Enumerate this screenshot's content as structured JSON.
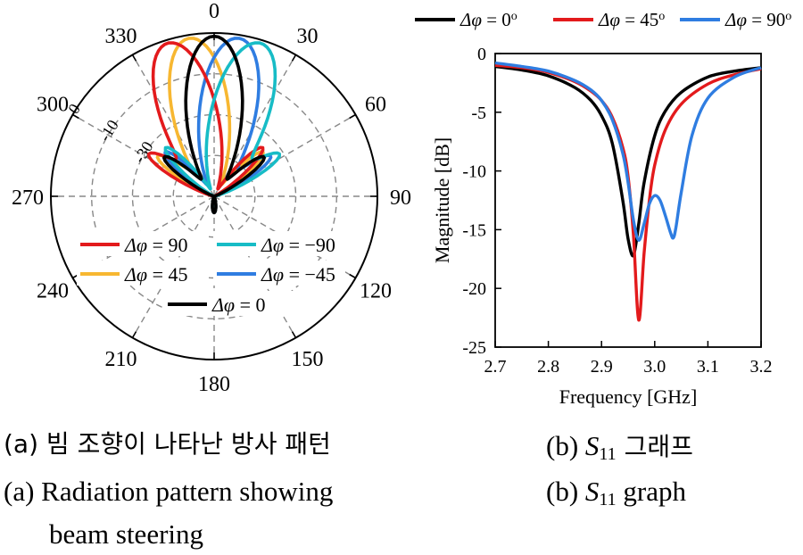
{
  "chart_data": [
    {
      "type": "polar-line",
      "title": "Radiation pattern showing beam steering",
      "angle_ticks": [
        "0",
        "30",
        "60",
        "90",
        "120",
        "150",
        "180",
        "210",
        "240",
        "270",
        "300",
        "330"
      ],
      "radial_labels": [
        "0",
        "-10",
        "-30"
      ],
      "rlim_db": [
        -40,
        0
      ],
      "legend": [
        {
          "symbol": "Δφ",
          "value": "90",
          "color": "#e31a1c"
        },
        {
          "symbol": "Δφ",
          "value": "−90",
          "color": "#17bcc6"
        },
        {
          "symbol": "Δφ",
          "value": "45",
          "color": "#f7b731"
        },
        {
          "symbol": "Δφ",
          "value": "−45",
          "color": "#2f7de1"
        },
        {
          "symbol": "Δφ",
          "value": "0",
          "color": "#000000"
        }
      ],
      "series": [
        {
          "name": "Δφ = 0",
          "color": "#000000",
          "main_beam_deg": 0,
          "main_width_deg": 24,
          "side_lobes_deg": [
            -52,
            52
          ],
          "side_level": 0.38
        },
        {
          "name": "Δφ = 90",
          "color": "#e31a1c",
          "main_beam_deg": -17,
          "main_width_deg": 24,
          "side_lobes_deg": [
            -58,
            45
          ],
          "side_level": 0.42
        },
        {
          "name": "Δφ = −90",
          "color": "#17bcc6",
          "main_beam_deg": 17,
          "main_width_deg": 24,
          "side_lobes_deg": [
            -45,
            58
          ],
          "side_level": 0.42
        },
        {
          "name": "Δφ = 45",
          "color": "#f7b731",
          "main_beam_deg": -9,
          "main_width_deg": 24,
          "side_lobes_deg": [
            -55,
            48
          ],
          "side_level": 0.4
        },
        {
          "name": "Δφ = −45",
          "color": "#2f7de1",
          "main_beam_deg": 9,
          "main_width_deg": 24,
          "side_lobes_deg": [
            -48,
            55
          ],
          "side_level": 0.4
        }
      ]
    },
    {
      "type": "line",
      "title": "S11 graph",
      "xlabel": "Frequency [GHz]",
      "ylabel": "Magnitude [dB]",
      "xlim": [
        2.7,
        3.2
      ],
      "ylim": [
        -25,
        0
      ],
      "xticks": [
        "2.7",
        "2.8",
        "2.9",
        "3.0",
        "3.1",
        "3.2"
      ],
      "yticks": [
        "0",
        "-5",
        "-10",
        "-15",
        "-20",
        "-25"
      ],
      "legend": [
        {
          "symbol": "Δφ",
          "value": "0",
          "color": "#000000"
        },
        {
          "symbol": "Δφ",
          "value": "45",
          "color": "#e31a1c"
        },
        {
          "symbol": "Δφ",
          "value": "90",
          "color": "#2f7de1"
        }
      ],
      "series": [
        {
          "name": "Δφ = 0°",
          "color": "#000000",
          "x": [
            2.7,
            2.75,
            2.8,
            2.85,
            2.88,
            2.9,
            2.92,
            2.94,
            2.95,
            2.96,
            2.97,
            2.98,
            3.0,
            3.02,
            3.05,
            3.1,
            3.15,
            3.2
          ],
          "y": [
            -1.1,
            -1.4,
            -1.9,
            -2.9,
            -4.0,
            -5.3,
            -7.6,
            -12.5,
            -15.8,
            -17.2,
            -14.5,
            -11.0,
            -7.0,
            -4.9,
            -3.3,
            -2.0,
            -1.5,
            -1.2
          ]
        },
        {
          "name": "Δφ = 45°",
          "color": "#e31a1c",
          "x": [
            2.7,
            2.75,
            2.8,
            2.85,
            2.88,
            2.9,
            2.92,
            2.94,
            2.95,
            2.96,
            2.97,
            2.98,
            2.99,
            3.0,
            3.02,
            3.05,
            3.1,
            3.15,
            3.2
          ],
          "y": [
            -1.0,
            -1.2,
            -1.6,
            -2.4,
            -3.2,
            -4.0,
            -5.4,
            -8.0,
            -10.5,
            -15.5,
            -22.7,
            -17.0,
            -12.5,
            -9.5,
            -6.5,
            -4.3,
            -2.6,
            -1.8,
            -1.3
          ]
        },
        {
          "name": "Δφ = 90°",
          "color": "#2f7de1",
          "x": [
            2.7,
            2.75,
            2.8,
            2.85,
            2.88,
            2.9,
            2.92,
            2.94,
            2.95,
            2.96,
            2.97,
            2.98,
            2.99,
            3.0,
            3.01,
            3.02,
            3.03,
            3.035,
            3.04,
            3.05,
            3.07,
            3.1,
            3.15,
            3.2
          ],
          "y": [
            -0.8,
            -1.1,
            -1.5,
            -2.3,
            -3.1,
            -4.0,
            -5.6,
            -8.5,
            -11.0,
            -14.2,
            -15.9,
            -14.5,
            -12.8,
            -12.1,
            -12.5,
            -13.8,
            -15.3,
            -15.7,
            -14.8,
            -11.8,
            -7.0,
            -3.8,
            -2.0,
            -1.2
          ]
        }
      ]
    }
  ],
  "captions": {
    "a_kr": "(a) 빔 조향이 나타난 방사 패턴",
    "b_kr_prefix": "(b) ",
    "b_kr_s": "S",
    "b_kr_sub": "11",
    "b_kr_suffix": " 그래프",
    "a_en_line1": "(a) Radiation pattern showing",
    "a_en_line2": "beam steering",
    "b_en_prefix": "(b) ",
    "b_en_s": "S",
    "b_en_sub": "11",
    "b_en_suffix": " graph"
  }
}
